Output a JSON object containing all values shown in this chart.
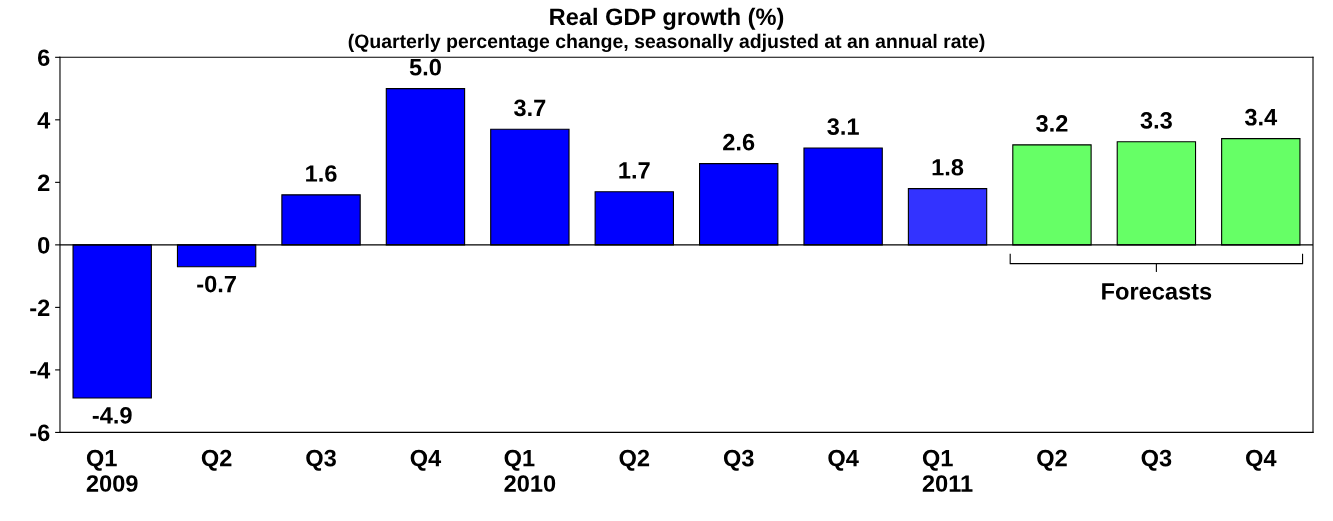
{
  "chart_data": {
    "type": "bar",
    "title": "Real GDP growth (%)",
    "subtitle": "(Quarterly percentage change, seasonally adjusted at an annual rate)",
    "categories": [
      "Q1\n2009",
      "Q2",
      "Q3",
      "Q4",
      "Q1\n2010",
      "Q2",
      "Q3",
      "Q4",
      "Q1\n2011",
      "Q2",
      "Q3",
      "Q4"
    ],
    "values": [
      -4.9,
      -0.7,
      1.6,
      5.0,
      3.7,
      1.7,
      2.6,
      3.1,
      1.8,
      3.2,
      3.3,
      3.4
    ],
    "colors": [
      "#0000ff",
      "#0000ff",
      "#0000ff",
      "#0000ff",
      "#0000ff",
      "#0000ff",
      "#0000ff",
      "#0000ff",
      "#3333ff",
      "#66ff66",
      "#66ff66",
      "#66ff66"
    ],
    "value_labels": [
      "-4.9",
      "-0.7",
      "1.6",
      "5.0",
      "3.7",
      "1.7",
      "2.6",
      "3.1",
      "1.8",
      "3.2",
      "3.3",
      "3.4"
    ],
    "ref_lines": [
      {
        "axis": "y",
        "value": 0,
        "color": "#000000"
      }
    ],
    "ylim": [
      -6,
      6
    ],
    "yticks": [
      -6,
      -4,
      -2,
      0,
      2,
      4,
      6
    ],
    "grid": false,
    "legend": false,
    "annotations": [
      "Forecasts"
    ]
  }
}
